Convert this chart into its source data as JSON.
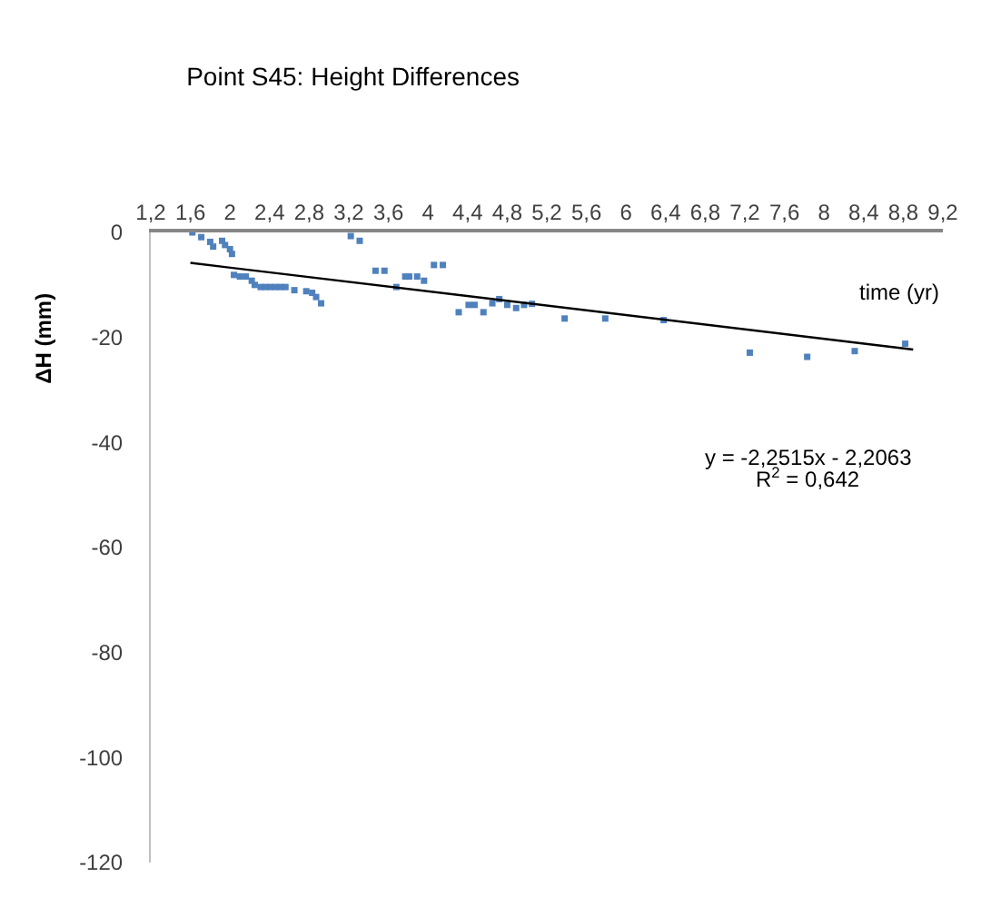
{
  "chart_data": {
    "type": "scatter",
    "title": "Point S45: Height Differences",
    "xlabel": "time (yr)",
    "ylabel": "ΔH (mm)",
    "xlim": [
      1.2,
      9.2
    ],
    "xticks": [
      {
        "value": 1.2,
        "label": "1,2"
      },
      {
        "value": 1.6,
        "label": "1,6"
      },
      2,
      {
        "value": 2.4,
        "label": "2,4"
      },
      {
        "value": 2.8,
        "label": "2,8"
      },
      {
        "value": 3.2,
        "label": "3,2"
      },
      {
        "value": 3.6,
        "label": "3,6"
      },
      4,
      {
        "value": 4.4,
        "label": "4,4"
      },
      {
        "value": 4.8,
        "label": "4,8"
      },
      {
        "value": 5.2,
        "label": "5,2"
      },
      {
        "value": 5.6,
        "label": "5,6"
      },
      6,
      {
        "value": 6.4,
        "label": "6,4"
      },
      {
        "value": 6.8,
        "label": "6,8"
      },
      {
        "value": 7.2,
        "label": "7,2"
      },
      {
        "value": 7.6,
        "label": "7,6"
      },
      8,
      {
        "value": 8.4,
        "label": "8,4"
      },
      {
        "value": 8.8,
        "label": "8,8"
      },
      {
        "value": 9.2,
        "label": "9,2"
      }
    ],
    "ylim": [
      -120,
      0
    ],
    "yticks": [
      0,
      -20,
      -40,
      -60,
      -80,
      -100,
      -120
    ],
    "marker": "square",
    "series": [
      {
        "color": "#4f81bd",
        "x": [
          1.62,
          1.71,
          1.8,
          1.83,
          1.92,
          1.95,
          2.0,
          2.02,
          2.04,
          2.1,
          2.16,
          2.22,
          2.25,
          2.31,
          2.36,
          2.41,
          2.46,
          2.51,
          2.56,
          2.65,
          2.77,
          2.83,
          2.87,
          2.92,
          3.22,
          3.31,
          3.47,
          3.56,
          3.68,
          3.77,
          3.81,
          3.89,
          3.96,
          4.06,
          4.15,
          4.31,
          4.41,
          4.47,
          4.56,
          4.65,
          4.72,
          4.8,
          4.89,
          4.97,
          5.05,
          5.38,
          5.79,
          6.38,
          7.25,
          7.83,
          8.31,
          8.82
        ],
        "values": [
          0,
          -0.9,
          -1.8,
          -2.7,
          -1.6,
          -2.4,
          -3.2,
          -4.1,
          -8.1,
          -8.4,
          -8.4,
          -9.2,
          -10.0,
          -10.4,
          -10.4,
          -10.4,
          -10.4,
          -10.4,
          -10.4,
          -11.0,
          -11.2,
          -11.5,
          -12.3,
          -13.5,
          -0.7,
          -1.6,
          -7.3,
          -7.3,
          -10.4,
          -8.4,
          -8.4,
          -8.4,
          -9.2,
          -6.2,
          -6.2,
          -15.2,
          -13.8,
          -13.8,
          -15.2,
          -13.5,
          -12.7,
          -13.8,
          -14.4,
          -13.8,
          -13.6,
          -16.4,
          -16.4,
          -16.7,
          -22.9,
          -23.7,
          -22.6,
          -21.2
        ]
      },
      {
        "type": "line",
        "color": "#000000",
        "marker": "none",
        "x": [
          1.6,
          8.9
        ],
        "values": [
          -5.8,
          -22.3
        ]
      }
    ],
    "annotations": [
      "y = -2,2515x - 2,2063",
      "R$^{2}$ = 0,642"
    ]
  }
}
